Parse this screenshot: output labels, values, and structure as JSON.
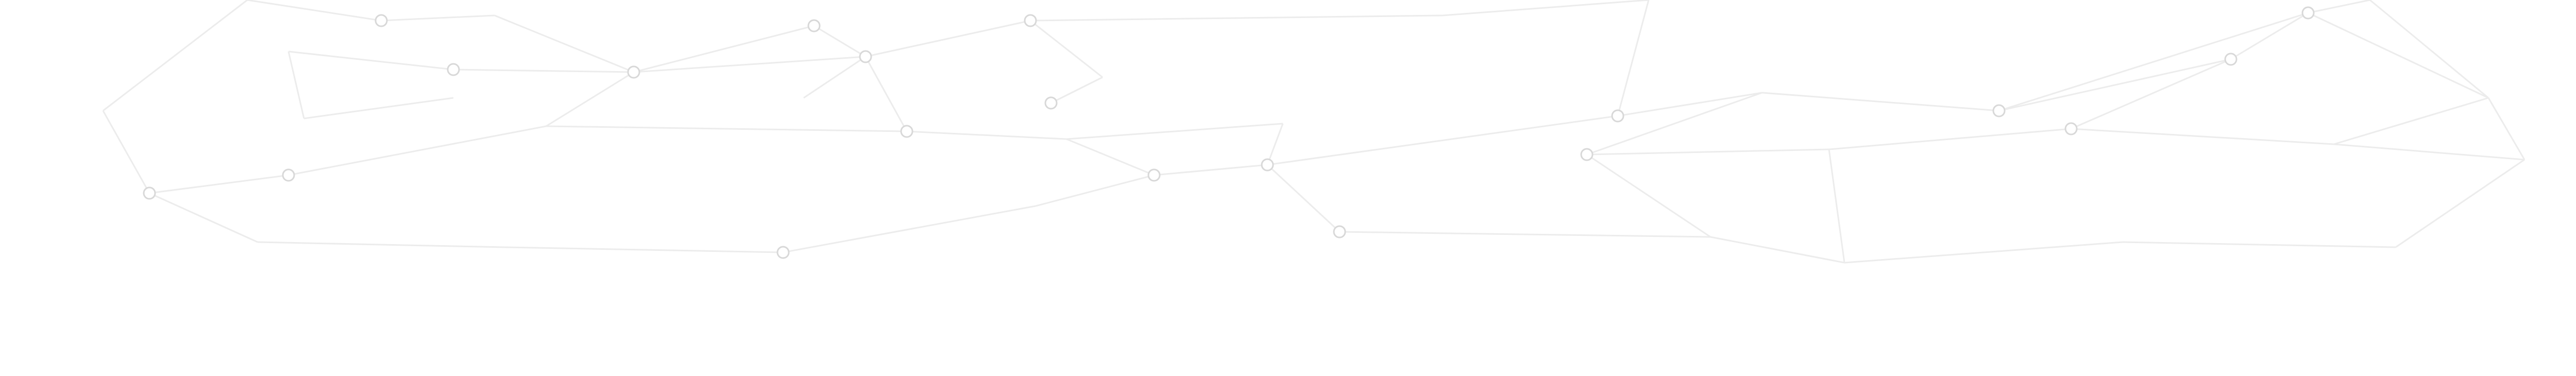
{
  "background": {
    "color": "#ffffff",
    "line_color": "#ececec",
    "node_stroke": "#d8d8d8",
    "node_fill": "#ffffff",
    "pattern": "polygonal-network"
  }
}
